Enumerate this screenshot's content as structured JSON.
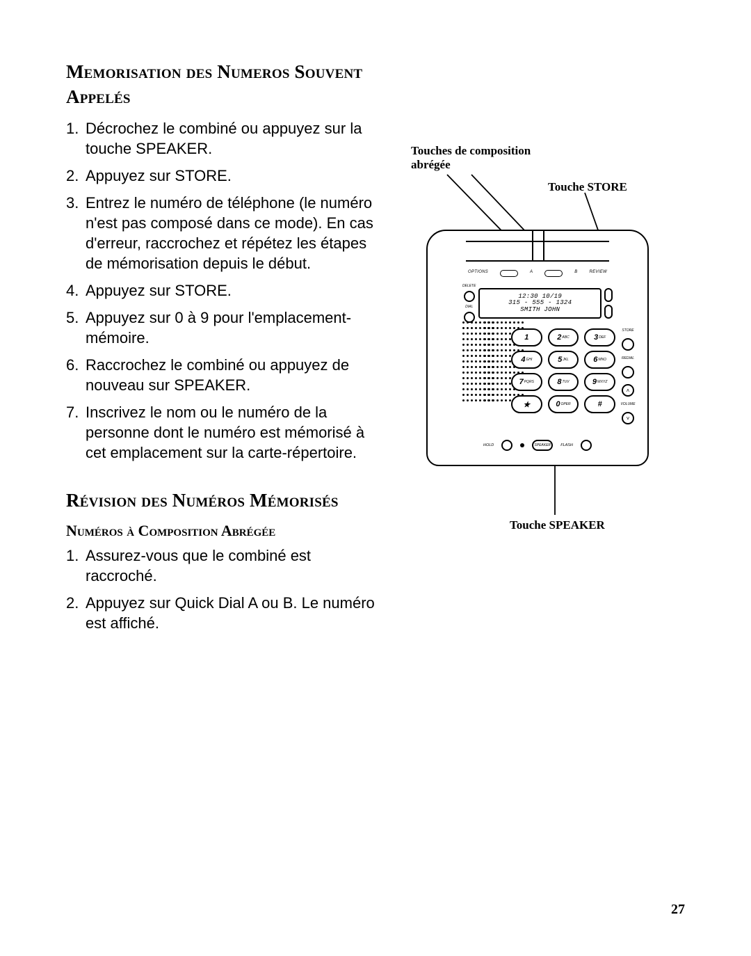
{
  "heading1": "Memorisation des Numeros Souvent Appelés",
  "steps1": [
    "Décrochez le combiné ou appuyez sur la touche SPEAKER.",
    "Appuyez sur STORE.",
    "Entrez le numéro de téléphone (le numéro n'est pas composé dans ce mode).  En cas d'erreur, raccrochez et répétez les étapes de mémorisation depuis le début.",
    "Appuyez sur STORE.",
    "Appuyez sur 0 à 9 pour l'emplacement-mémoire.",
    "Raccrochez le combiné ou appuyez de nouveau sur SPEAKER.",
    "Inscrivez le nom ou le numéro de la personne dont le numéro est mémorisé à cet emplacement sur la carte-répertoire."
  ],
  "heading2": "Révision des Numéros Mémorisés",
  "subheading2": "Numéros à Composition Abrégée",
  "steps2": [
    "Assurez-vous que le combiné est raccroché.",
    "Appuyez sur Quick Dial A ou B.  Le numéro est affiché."
  ],
  "page_number": "27",
  "figure": {
    "callout_quickdial": "Touches de composition abrégée",
    "callout_store": "Touche STORE",
    "callout_speaker": "Touche SPEAKER",
    "lcd_line1": "12:30   10/19",
    "lcd_line2": "315 - 555 - 1324",
    "lcd_line3": "SMITH  JOHN",
    "option_labels": {
      "left": "OPTIONS",
      "a": "A",
      "b": "B",
      "review": "REVIEW"
    },
    "side_labels": {
      "delete": "DELETE",
      "dial": "DIAL",
      "store": "STORE",
      "redial": "REDIAL",
      "volume": "VOLUME"
    },
    "keys": [
      {
        "main": "1",
        "sub": ""
      },
      {
        "main": "2",
        "sub": "ABC"
      },
      {
        "main": "3",
        "sub": "DEF"
      },
      {
        "main": "4",
        "sub": "GHI"
      },
      {
        "main": "5",
        "sub": "JKL"
      },
      {
        "main": "6",
        "sub": "MNO"
      },
      {
        "main": "7",
        "sub": "PQRS"
      },
      {
        "main": "8",
        "sub": "TUV"
      },
      {
        "main": "9",
        "sub": "WXYZ"
      },
      {
        "main": "★",
        "sub": ""
      },
      {
        "main": "0",
        "sub": "OPER"
      },
      {
        "main": "#",
        "sub": ""
      }
    ],
    "bottom": {
      "hold": "HOLD",
      "speaker": "SPEAKER",
      "flash": "FLASH"
    }
  },
  "colors": {
    "text": "#000000",
    "bg": "#ffffff"
  }
}
